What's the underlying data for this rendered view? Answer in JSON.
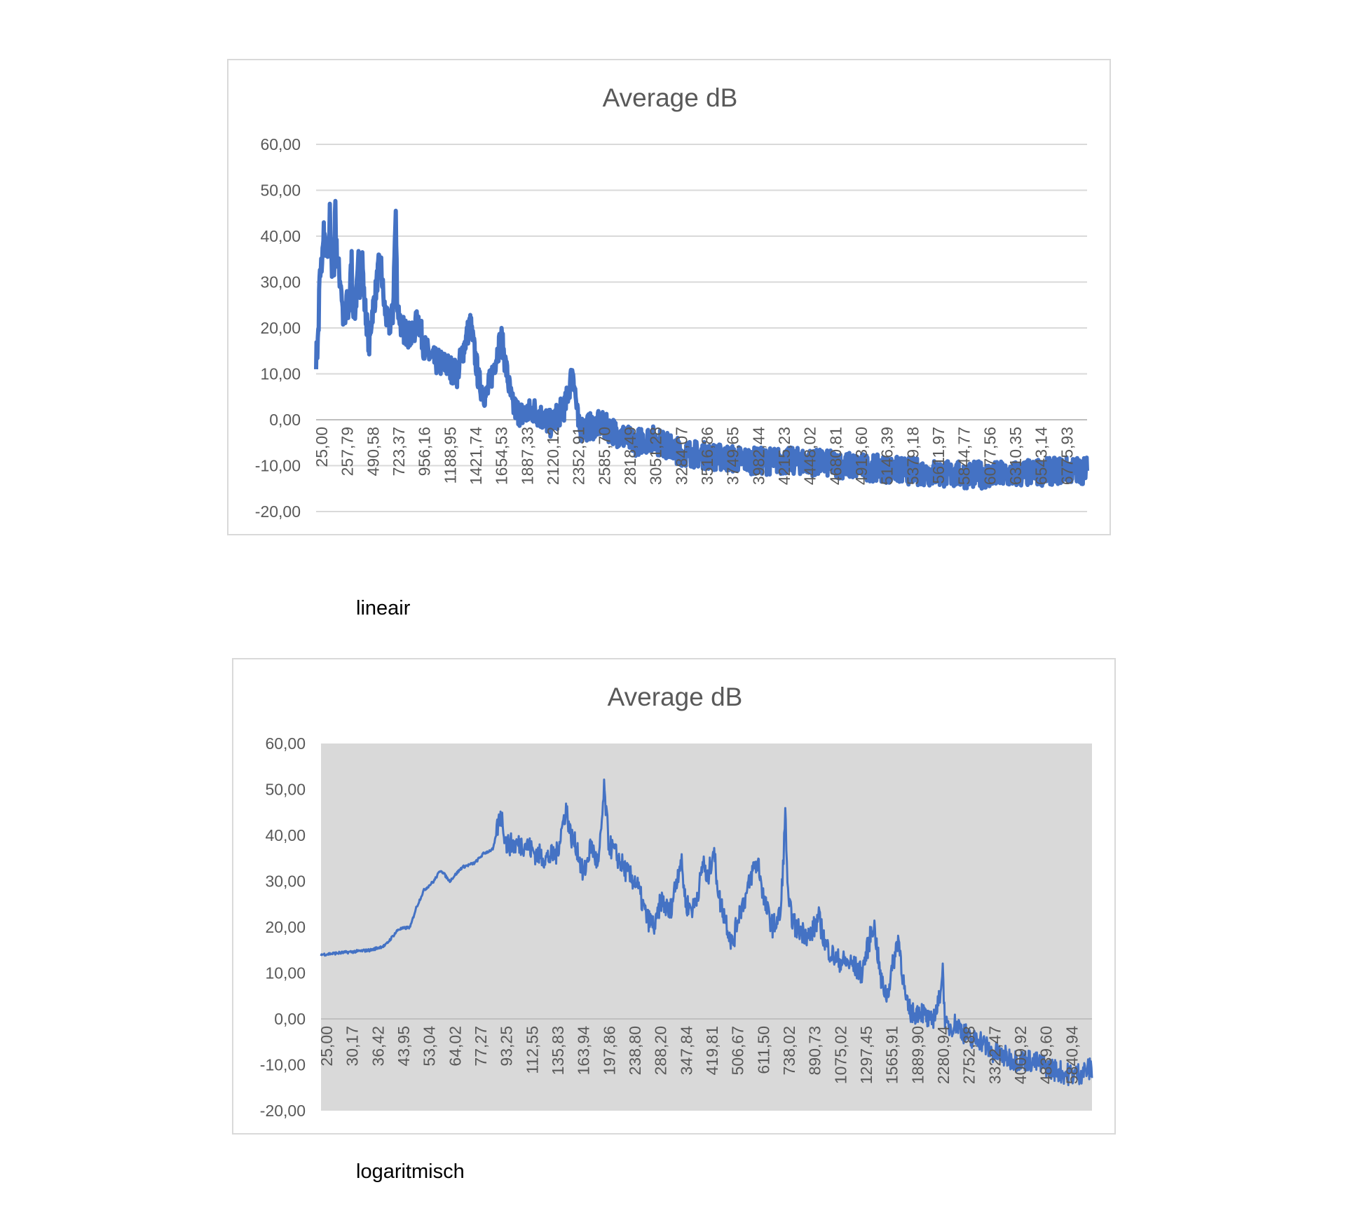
{
  "chart_data": [
    {
      "type": "line",
      "title": "Average dB",
      "xscale": "linear",
      "xlabel": "",
      "ylabel": "",
      "ylim": [
        -20,
        60
      ],
      "yticks": [
        "60,00",
        "50,00",
        "40,00",
        "30,00",
        "20,00",
        "10,00",
        "0,00",
        "-10,00",
        "-20,00"
      ],
      "ytick_values": [
        60,
        50,
        40,
        30,
        20,
        10,
        0,
        -10,
        -20
      ],
      "xlim": [
        25,
        7000
      ],
      "xtick_labels": [
        "25,00",
        "257,79",
        "490,58",
        "723,37",
        "956,16",
        "1188,95",
        "1421,74",
        "1654,53",
        "1887,33",
        "2120,12",
        "2352,91",
        "2585,70",
        "2818,49",
        "3051,28",
        "3284,07",
        "3516,86",
        "3749,65",
        "3982,44",
        "4215,23",
        "4448,02",
        "4680,81",
        "4913,60",
        "5146,39",
        "5379,18",
        "5611,97",
        "5844,77",
        "6077,56",
        "6310,35",
        "6543,14",
        "6775,93"
      ],
      "grid": true,
      "plot_background": "#ffffff",
      "series_color": "#4472c4",
      "caption": "lineair"
    },
    {
      "type": "line",
      "title": "Average dB",
      "xscale": "log",
      "xlabel": "",
      "ylabel": "",
      "ylim": [
        -20,
        60
      ],
      "yticks": [
        "60,00",
        "50,00",
        "40,00",
        "30,00",
        "20,00",
        "10,00",
        "0,00",
        "-10,00",
        "-20,00"
      ],
      "ytick_values": [
        60,
        50,
        40,
        30,
        20,
        10,
        0,
        -10,
        -20
      ],
      "xlim": [
        25,
        7000
      ],
      "xtick_labels": [
        "25,00",
        "30,17",
        "36,42",
        "43,95",
        "53,04",
        "64,02",
        "77,27",
        "93,25",
        "112,55",
        "135,83",
        "163,94",
        "197,86",
        "238,80",
        "288,20",
        "347,84",
        "419,81",
        "506,67",
        "611,50",
        "738,02",
        "890,73",
        "1075,02",
        "1297,45",
        "1565,91",
        "1889,90",
        "2280,94",
        "2752,88",
        "3322,47",
        "4009,92",
        "4839,60",
        "5840,94"
      ],
      "grid": false,
      "plot_background": "#d9d9d9",
      "series_color": "#4472c4",
      "caption": "logaritmisch"
    }
  ],
  "series": {
    "name": "Average dB",
    "points": [
      [
        25,
        14
      ],
      [
        30,
        14.5
      ],
      [
        36,
        15
      ],
      [
        40,
        16
      ],
      [
        44,
        19.5
      ],
      [
        48,
        20
      ],
      [
        50,
        24
      ],
      [
        53,
        28
      ],
      [
        57,
        30
      ],
      [
        60,
        32.5
      ],
      [
        64,
        30
      ],
      [
        70,
        33
      ],
      [
        77,
        34
      ],
      [
        82,
        36
      ],
      [
        88,
        37
      ],
      [
        93,
        45
      ],
      [
        97,
        38
      ],
      [
        105,
        38
      ],
      [
        112,
        38
      ],
      [
        120,
        36
      ],
      [
        130,
        35
      ],
      [
        140,
        36
      ],
      [
        150,
        46
      ],
      [
        155,
        40
      ],
      [
        163,
        37
      ],
      [
        170,
        31
      ],
      [
        180,
        38
      ],
      [
        190,
        33
      ],
      [
        198,
        50
      ],
      [
        205,
        38
      ],
      [
        215,
        36
      ],
      [
        238,
        31
      ],
      [
        250,
        30
      ],
      [
        270,
        22
      ],
      [
        288,
        20
      ],
      [
        300,
        26
      ],
      [
        320,
        23
      ],
      [
        347,
        35
      ],
      [
        360,
        25
      ],
      [
        380,
        24
      ],
      [
        400,
        30
      ],
      [
        410,
        35
      ],
      [
        419,
        29
      ],
      [
        440,
        37
      ],
      [
        460,
        26
      ],
      [
        480,
        22
      ],
      [
        506,
        16
      ],
      [
        530,
        23
      ],
      [
        560,
        27
      ],
      [
        590,
        33
      ],
      [
        611,
        34
      ],
      [
        640,
        25
      ],
      [
        680,
        20
      ],
      [
        720,
        23
      ],
      [
        745,
        45
      ],
      [
        760,
        25
      ],
      [
        800,
        20
      ],
      [
        890,
        18
      ],
      [
        950,
        22
      ],
      [
        1000,
        16
      ],
      [
        1075,
        13
      ],
      [
        1200,
        12
      ],
      [
        1300,
        10
      ],
      [
        1420,
        21
      ],
      [
        1500,
        8
      ],
      [
        1565,
        5
      ],
      [
        1700,
        18
      ],
      [
        1800,
        3
      ],
      [
        1890,
        1
      ],
      [
        2000,
        2
      ],
      [
        2150,
        -1
      ],
      [
        2280,
        3
      ],
      [
        2350,
        11
      ],
      [
        2400,
        -2
      ],
      [
        2600,
        -1
      ],
      [
        2752,
        -3
      ],
      [
        2900,
        -5
      ],
      [
        3050,
        -4
      ],
      [
        3322,
        -7
      ],
      [
        3600,
        -8
      ],
      [
        4009,
        -9
      ],
      [
        4400,
        -9
      ],
      [
        4839,
        -10
      ],
      [
        5300,
        -11
      ],
      [
        5840,
        -12
      ],
      [
        6300,
        -12
      ],
      [
        6800,
        -11
      ],
      [
        7000,
        -11
      ]
    ]
  }
}
